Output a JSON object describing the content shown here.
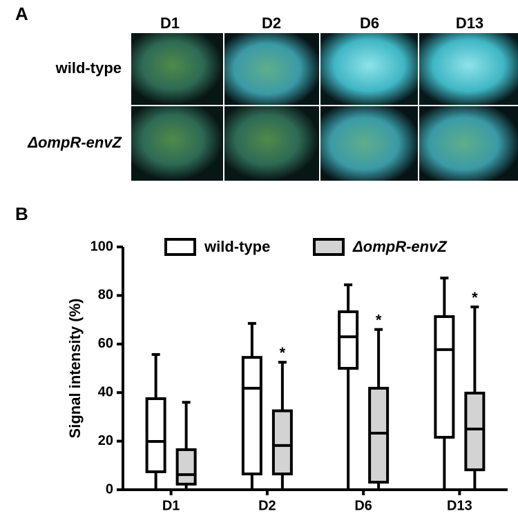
{
  "panel_a": {
    "label": "A",
    "columns": [
      "D1",
      "D2",
      "D6",
      "D13"
    ],
    "rows": [
      "wild-type",
      "ΔompR-envZ"
    ]
  },
  "chart_data": {
    "type": "box",
    "panel_label": "B",
    "y_label": "Signal intensity (%)",
    "categories": [
      "D1",
      "D2",
      "D6",
      "D13"
    ],
    "ylim": [
      0,
      100
    ],
    "yticks": [
      0,
      20,
      40,
      60,
      80,
      100
    ],
    "legend": "top",
    "series": [
      {
        "name": "wild-type",
        "color": "#ffffff",
        "min": [
          0,
          0,
          0,
          0
        ],
        "q1": [
          7.4,
          6.5,
          50,
          21.6
        ],
        "median": [
          19.9,
          41.8,
          63,
          57.7
        ],
        "q3": [
          37.5,
          54.5,
          73.3,
          71.3
        ],
        "max": [
          55.7,
          68.5,
          84.4,
          87.2
        ]
      },
      {
        "name": "ΔompR-envZ",
        "color": "#d3d3d3",
        "min": [
          0,
          0,
          0,
          0
        ],
        "q1": [
          2.3,
          6.5,
          3.1,
          8.2
        ],
        "median": [
          6.2,
          18.2,
          23.3,
          25
        ],
        "q3": [
          16.5,
          32.5,
          41.8,
          39.8
        ],
        "max": [
          36,
          52.5,
          66,
          75.3
        ]
      }
    ],
    "significance": [
      null,
      "*",
      "*",
      "*"
    ]
  }
}
